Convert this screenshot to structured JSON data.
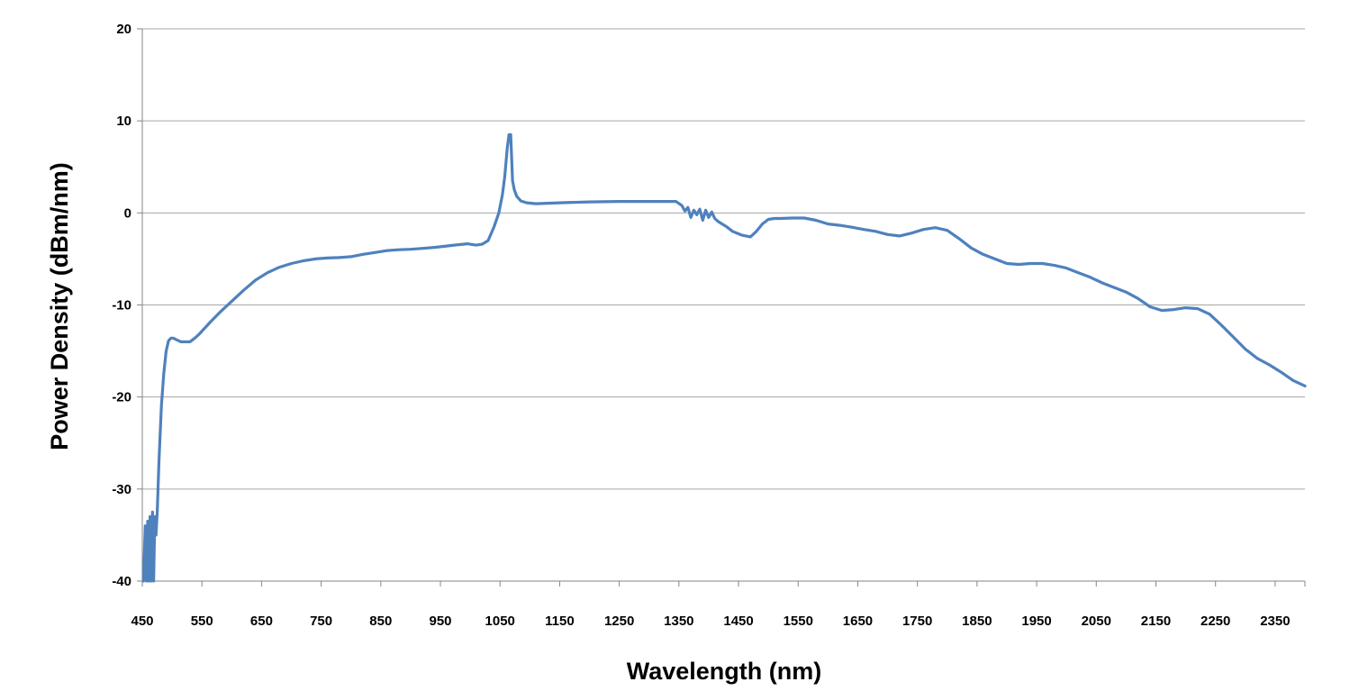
{
  "chart_data": {
    "type": "line",
    "title": "",
    "xlabel": "Wavelength (nm)",
    "ylabel": "Power Density (dBm/nm)",
    "xlim": [
      450,
      2400
    ],
    "ylim": [
      -40,
      20
    ],
    "x_ticks": [
      450,
      550,
      650,
      750,
      850,
      950,
      1050,
      1150,
      1250,
      1350,
      1450,
      1550,
      1650,
      1750,
      1850,
      1950,
      2050,
      2150,
      2250,
      2350
    ],
    "y_ticks": [
      -40,
      -30,
      -20,
      -10,
      0,
      10,
      20
    ],
    "grid": "horizontal",
    "line_color": "#4F81BD",
    "series": [
      {
        "name": "",
        "x": [
          452,
          455,
          457,
          459,
          461,
          463,
          465,
          467,
          469,
          471,
          473,
          475,
          478,
          482,
          486,
          490,
          494,
          498,
          502,
          508,
          515,
          522,
          530,
          538,
          545,
          555,
          565,
          580,
          600,
          620,
          640,
          660,
          680,
          700,
          720,
          740,
          760,
          780,
          800,
          820,
          840,
          860,
          880,
          900,
          920,
          940,
          960,
          980,
          995,
          1010,
          1020,
          1030,
          1040,
          1048,
          1054,
          1058,
          1062,
          1065,
          1068,
          1071,
          1074,
          1078,
          1085,
          1095,
          1110,
          1130,
          1150,
          1200,
          1250,
          1300,
          1345,
          1355,
          1360,
          1365,
          1370,
          1375,
          1380,
          1385,
          1390,
          1395,
          1400,
          1405,
          1410,
          1415,
          1420,
          1430,
          1440,
          1455,
          1470,
          1480,
          1490,
          1500,
          1510,
          1520,
          1540,
          1560,
          1580,
          1600,
          1620,
          1640,
          1660,
          1680,
          1700,
          1720,
          1740,
          1760,
          1780,
          1800,
          1820,
          1840,
          1860,
          1880,
          1900,
          1920,
          1940,
          1960,
          1980,
          2000,
          2020,
          2040,
          2060,
          2080,
          2100,
          2120,
          2140,
          2160,
          2180,
          2200,
          2220,
          2240,
          2260,
          2280,
          2300,
          2320,
          2340,
          2360,
          2380,
          2400
        ],
        "y": [
          -40,
          -34,
          -40,
          -33.5,
          -40,
          -33,
          -40,
          -32.5,
          -40,
          -33,
          -35,
          -32.5,
          -27,
          -21,
          -17.5,
          -15,
          -13.9,
          -13.6,
          -13.6,
          -13.8,
          -14,
          -14,
          -14,
          -13.6,
          -13.2,
          -12.5,
          -11.8,
          -10.8,
          -9.6,
          -8.4,
          -7.3,
          -6.5,
          -5.9,
          -5.5,
          -5.2,
          -5,
          -4.9,
          -4.85,
          -4.75,
          -4.5,
          -4.3,
          -4.1,
          -4.0,
          -3.95,
          -3.85,
          -3.75,
          -3.6,
          -3.45,
          -3.35,
          -3.5,
          -3.4,
          -3,
          -1.5,
          0,
          2,
          4,
          7,
          8.5,
          8.5,
          3.5,
          2.5,
          1.8,
          1.3,
          1.1,
          1.0,
          1.05,
          1.1,
          1.2,
          1.25,
          1.25,
          1.25,
          0.8,
          0.2,
          0.6,
          -0.5,
          0.3,
          -0.2,
          0.4,
          -0.8,
          0.3,
          -0.5,
          0.1,
          -0.6,
          -0.9,
          -1.1,
          -1.5,
          -2.0,
          -2.4,
          -2.6,
          -2.0,
          -1.2,
          -0.7,
          -0.6,
          -0.6,
          -0.55,
          -0.55,
          -0.8,
          -1.2,
          -1.35,
          -1.55,
          -1.8,
          -2.0,
          -2.35,
          -2.5,
          -2.2,
          -1.8,
          -1.6,
          -1.9,
          -2.8,
          -3.8,
          -4.5,
          -5.0,
          -5.5,
          -5.6,
          -5.5,
          -5.5,
          -5.7,
          -6.0,
          -6.5,
          -7.0,
          -7.6,
          -8.1,
          -8.6,
          -9.3,
          -10.2,
          -10.6,
          -10.5,
          -10.3,
          -10.4,
          -11.0,
          -12.2,
          -13.5,
          -14.8,
          -15.8,
          -16.5,
          -17.3,
          -18.2,
          -18.8
        ]
      }
    ]
  }
}
